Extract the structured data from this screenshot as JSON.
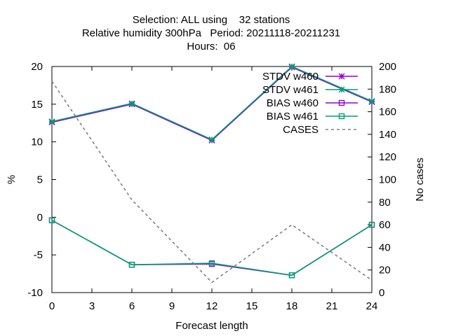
{
  "chart_data": {
    "type": "line",
    "title_lines": [
      "Selection: ALL using    32 stations",
      "Relative humidity 300hPa   Period: 20211118-20211231",
      "Hours:  06"
    ],
    "xlabel": "Forecast length",
    "ylabel": "%",
    "y2label": "No cases",
    "xlim": [
      0,
      24
    ],
    "ylim": [
      -10,
      20
    ],
    "y2lim": [
      0,
      200
    ],
    "xticks": [
      0,
      3,
      6,
      9,
      12,
      15,
      18,
      21,
      24
    ],
    "yticks": [
      -10,
      -5,
      0,
      5,
      10,
      15,
      20
    ],
    "y2ticks": [
      0,
      20,
      40,
      60,
      80,
      100,
      120,
      140,
      160,
      180,
      200
    ],
    "grid": false,
    "legend_position": "top-right",
    "x": [
      0,
      6,
      12,
      18,
      24
    ],
    "series": [
      {
        "name": "STDV w460",
        "axis": "y",
        "values": [
          12.6,
          15.0,
          10.2,
          19.9,
          15.3
        ],
        "color": "#9400d3",
        "marker": "star",
        "dash": "solid"
      },
      {
        "name": "STDV w461",
        "axis": "y",
        "values": [
          12.7,
          15.1,
          10.3,
          20.0,
          15.4
        ],
        "color": "#009e73",
        "marker": "star",
        "dash": "solid"
      },
      {
        "name": "BIAS w460",
        "axis": "y",
        "values": [
          -0.4,
          -6.3,
          -6.2,
          -7.7,
          -1.0
        ],
        "color": "#9400d3",
        "marker": "square",
        "dash": "solid"
      },
      {
        "name": "BIAS w461",
        "axis": "y",
        "values": [
          -0.4,
          -6.3,
          -6.1,
          -7.7,
          -1.0
        ],
        "color": "#009e73",
        "marker": "square",
        "dash": "solid"
      },
      {
        "name": "CASES",
        "axis": "y2",
        "values": [
          187,
          82,
          9,
          60,
          11
        ],
        "color": "#808080",
        "marker": "none",
        "dash": "dashed"
      }
    ]
  }
}
